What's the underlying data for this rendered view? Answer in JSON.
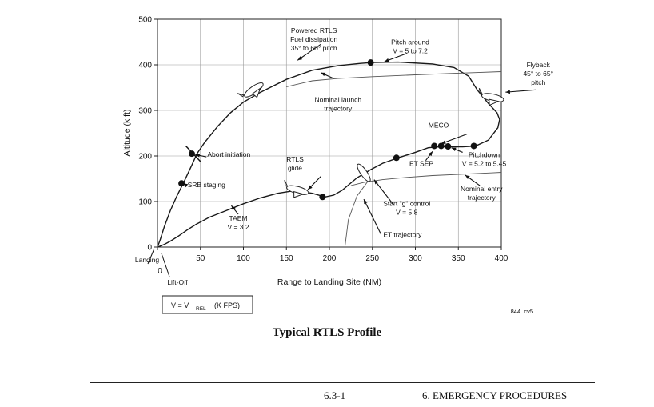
{
  "chart_data": {
    "type": "line",
    "xlabel": "Range to Landing Site (NM)",
    "ylabel": "Altitude (k ft)",
    "xlim": [
      0,
      400
    ],
    "ylim": [
      0,
      500
    ],
    "xticks": [
      "0",
      "50",
      "100",
      "150",
      "200",
      "250",
      "300",
      "350",
      "400"
    ],
    "yticks": [
      "0",
      "100",
      "200",
      "300",
      "400",
      "500"
    ],
    "grid": true,
    "series": [
      {
        "style": "solid",
        "x": [
          0,
          3,
          8,
          15,
          22,
          30,
          40,
          46,
          55,
          70,
          85,
          100,
          120,
          150,
          180,
          210,
          235,
          250,
          280,
          320,
          345,
          362,
          372,
          385,
          395,
          398,
          396,
          385,
          370,
          355,
          340,
          328,
          315,
          300,
          280,
          262,
          248,
          232,
          215,
          205,
          195,
          180,
          160,
          140,
          120,
          100,
          80,
          60,
          45,
          35,
          25,
          15,
          8,
          3,
          0
        ],
        "y": [
          0,
          15,
          45,
          80,
          110,
          140,
          180,
          205,
          230,
          265,
          295,
          318,
          340,
          368,
          388,
          398,
          403,
          405,
          406,
          402,
          394,
          375,
          345,
          315,
          295,
          280,
          262,
          235,
          222,
          220,
          220,
          220,
          218,
          208,
          196,
          184,
          170,
          152,
          125,
          114,
          110,
          118,
          124,
          118,
          108,
          95,
          80,
          65,
          50,
          38,
          25,
          13,
          6,
          2,
          0
        ]
      },
      {
        "style": "thin",
        "x": [
          150,
          180,
          210,
          250,
          300,
          340,
          370,
          400
        ],
        "y": [
          352,
          365,
          370,
          374,
          378,
          381,
          383,
          385
        ]
      },
      {
        "style": "thin",
        "x": [
          225,
          240,
          262,
          290,
          320,
          355,
          390,
          400
        ],
        "y": [
          135,
          142,
          148,
          153,
          157,
          160,
          163,
          164
        ]
      },
      {
        "style": "thin",
        "x": [
          218,
          222,
          232,
          247
        ],
        "y": [
          0,
          60,
          112,
          150
        ]
      }
    ],
    "markers": [
      {
        "x": 40,
        "y": 205,
        "label_key": "abort"
      },
      {
        "x": 28,
        "y": 140,
        "label_key": "srb"
      },
      {
        "x": 248,
        "y": 405,
        "label_key": "pitch_around"
      },
      {
        "x": 192,
        "y": 110,
        "label_key": "glide_pt"
      },
      {
        "x": 278,
        "y": 196
      },
      {
        "x": 322,
        "y": 222
      },
      {
        "x": 330,
        "y": 222
      },
      {
        "x": 338,
        "y": 221
      },
      {
        "x": 368,
        "y": 222
      }
    ],
    "annotations": [
      {
        "lines": [
          "Powered RTLS",
          "Fuel dissipation",
          "35° to 60° pitch"
        ],
        "x": 182,
        "y": 470,
        "anchor": "middle"
      },
      {
        "lines": [
          "Pitch around",
          "V = 5 to 7.2"
        ],
        "x": 294,
        "y": 445,
        "anchor": "middle"
      },
      {
        "lines": [
          "Flyback",
          "45° to 65°",
          "pitch"
        ],
        "x": 443,
        "y": 395,
        "anchor": "middle"
      },
      {
        "lines": [
          "Nominal launch",
          "trajectory"
        ],
        "x": 210,
        "y": 318,
        "anchor": "middle"
      },
      {
        "lines": [
          "MECO"
        ],
        "x": 327,
        "y": 262,
        "anchor": "middle"
      },
      {
        "lines": [
          "Abort initiation"
        ],
        "x": 58,
        "y": 198,
        "anchor": "start"
      },
      {
        "lines": [
          "RTLS",
          "glide"
        ],
        "x": 160,
        "y": 188,
        "anchor": "middle"
      },
      {
        "lines": [
          "ET SEP"
        ],
        "x": 307,
        "y": 178,
        "anchor": "middle"
      },
      {
        "lines": [
          "Pitchdown",
          "V = 5.2 to 5.45"
        ],
        "x": 380,
        "y": 197,
        "anchor": "middle"
      },
      {
        "lines": [
          "SRB staging"
        ],
        "x": 35,
        "y": 132,
        "anchor": "start"
      },
      {
        "lines": [
          "Nominal entry",
          "trajectory"
        ],
        "x": 377,
        "y": 123,
        "anchor": "middle"
      },
      {
        "lines": [
          "Start \"g\" control",
          "V = 5.8"
        ],
        "x": 290,
        "y": 90,
        "anchor": "middle"
      },
      {
        "lines": [
          "TAEM",
          "V = 3.2"
        ],
        "x": 94,
        "y": 58,
        "anchor": "middle"
      },
      {
        "lines": [
          "ET trajectory"
        ],
        "x": 285,
        "y": 22,
        "anchor": "middle"
      }
    ],
    "outside_labels": {
      "landing": "Landing",
      "liftoff": "Lift-Off",
      "legend": "V = V",
      "legend_sub": "REL",
      "legend_tail": "(K FPS)",
      "file_ref": "844 .cv5"
    }
  },
  "caption": "Typical RTLS Profile",
  "footer": {
    "page": "6.3-1",
    "section": "6. EMERGENCY PROCEDURES"
  }
}
